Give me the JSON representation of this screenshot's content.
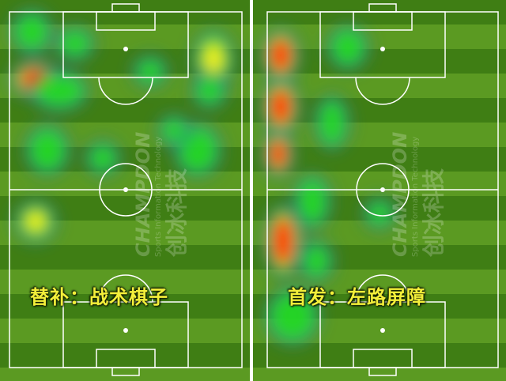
{
  "panels": [
    {
      "caption": "替补：战术棋子"
    },
    {
      "caption": "首发：左路屏障"
    }
  ],
  "watermark": {
    "brand": "CHAMPDON",
    "tagline": "Sports Information Technology",
    "cn": "创冰科技"
  },
  "colors": {
    "pitch_dark": "#3f7e14",
    "pitch_light": "#5b9a22",
    "line": "#ffffff",
    "heat_low": "#22dd22",
    "heat_mid": "#eeee22",
    "heat_high": "#ff2200",
    "caption": "#f3ef3a"
  }
}
